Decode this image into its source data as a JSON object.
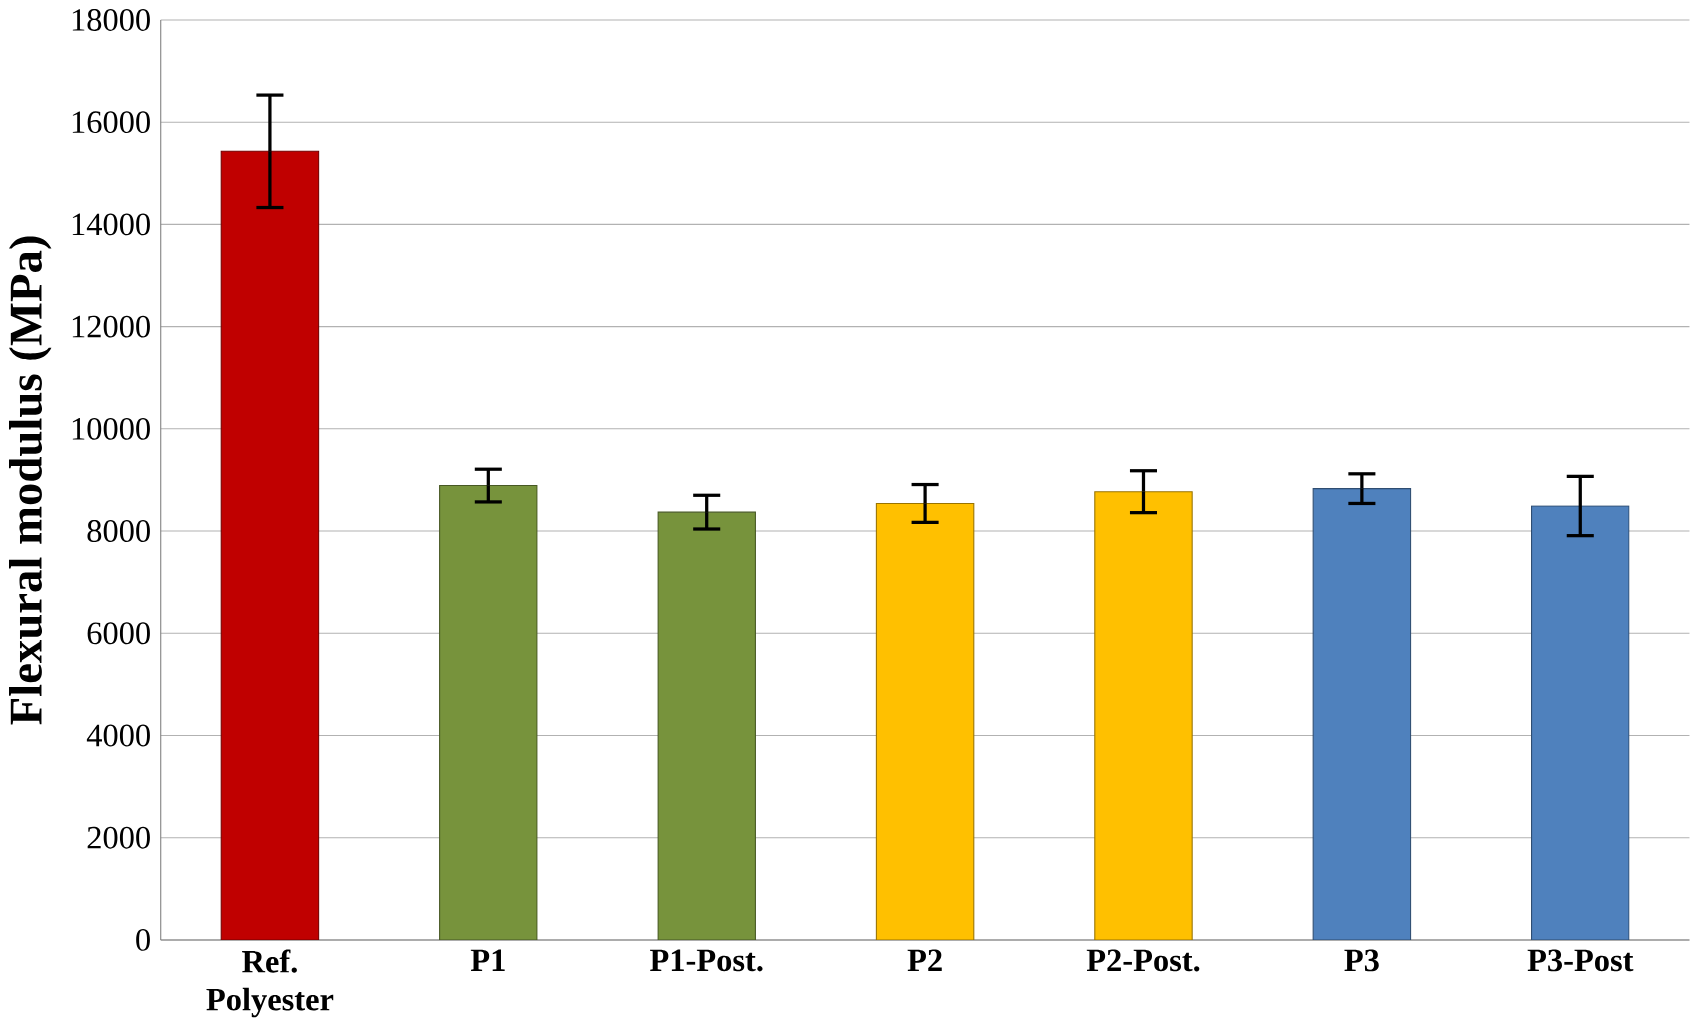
{
  "chart_data": {
    "type": "bar",
    "ylabel": "Flexural modulus (MPa)",
    "categories": [
      "Ref. Polyester",
      "P1",
      "P1-Post.",
      "P2",
      "P2-Post.",
      "P3",
      "P3-Post"
    ],
    "values": [
      15430,
      8890,
      8370,
      8540,
      8770,
      8830,
      8490
    ],
    "errors": [
      1100,
      320,
      330,
      370,
      410,
      290,
      580
    ],
    "colors": [
      "#c00000",
      "#77933c",
      "#77933c",
      "#ffc000",
      "#ffc000",
      "#4f81bd",
      "#4f81bd"
    ],
    "ylim": [
      0,
      18000
    ],
    "yticks": [
      0,
      2000,
      4000,
      6000,
      8000,
      10000,
      12000,
      14000,
      16000,
      18000
    ],
    "grid": "y"
  }
}
